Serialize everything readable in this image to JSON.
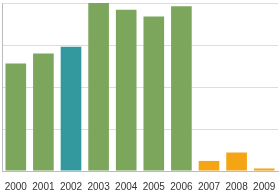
{
  "chart_data": {
    "type": "bar",
    "categories": [
      "2000",
      "2001",
      "2002",
      "2003",
      "2004",
      "2005",
      "2006",
      "2007",
      "2008",
      "2009"
    ],
    "values": [
      64,
      70,
      74,
      100,
      96,
      92,
      98,
      6,
      11,
      1.5
    ],
    "colors": [
      "#7ba65c",
      "#7ba65c",
      "#34999e",
      "#7ba65c",
      "#7ba65c",
      "#7ba65c",
      "#7ba65c",
      "#f5a414",
      "#f5a414",
      "#f5a414"
    ],
    "ylim": [
      0,
      100
    ],
    "yticks": [
      0,
      25,
      50,
      75,
      100
    ],
    "grid": true,
    "tick_labels": "x"
  }
}
